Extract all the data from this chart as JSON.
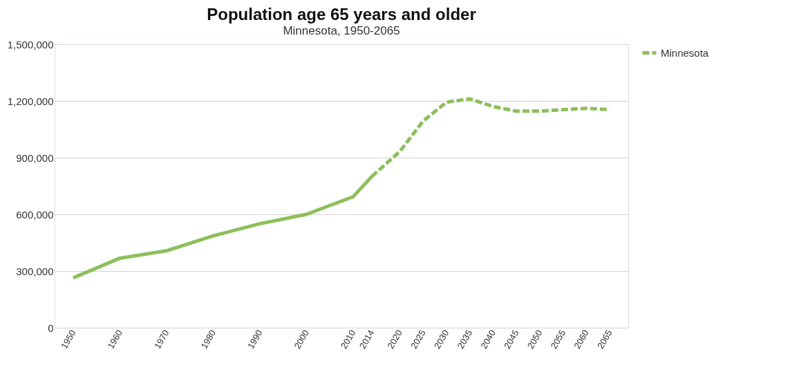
{
  "chart_data": {
    "type": "line",
    "title": "Population age 65 years and older",
    "subtitle": "Minnesota, 1950-2065",
    "x": [
      1950,
      1960,
      1970,
      1980,
      1990,
      2000,
      2010,
      2014,
      2020,
      2025,
      2030,
      2035,
      2040,
      2045,
      2050,
      2055,
      2060,
      2065
    ],
    "series": [
      {
        "color": "#8cbf5a",
        "line_style": "solid",
        "values": [
          264000,
          368000,
          407000,
          486000,
          550000,
          600000,
          693000,
          800000,
          null,
          null,
          null,
          null,
          null,
          null,
          null,
          null,
          null,
          null
        ]
      },
      {
        "name": "Minnesota",
        "color": "#8cbf5a",
        "line_style": "dashed",
        "values": [
          null,
          null,
          null,
          null,
          null,
          null,
          null,
          800000,
          932000,
          1093000,
          1193000,
          1211000,
          1171000,
          1146000,
          1146000,
          1154000,
          1161000,
          1154000
        ]
      }
    ],
    "xlim": [
      1946,
      2069
    ],
    "xticks": [
      1950,
      1960,
      1970,
      1980,
      1990,
      2000,
      2010,
      2014,
      2020,
      2025,
      2030,
      2035,
      2040,
      2045,
      2050,
      2055,
      2060,
      2065
    ],
    "ylim": [
      0,
      1500000
    ],
    "yticks": [
      0,
      {
        "value": 300000,
        "label": "300,000"
      },
      {
        "value": 600000,
        "label": "600,000"
      },
      {
        "value": 900000,
        "label": "900,000"
      },
      {
        "value": 1200000,
        "label": "1,200,000"
      },
      {
        "value": 1500000,
        "label": "1,500,000"
      }
    ],
    "grid": "y",
    "legend": "right",
    "marker": "none"
  }
}
